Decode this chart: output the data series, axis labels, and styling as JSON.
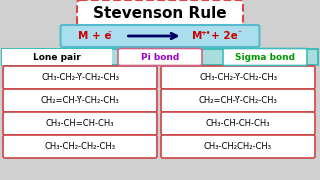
{
  "title": "Stevenson Rule",
  "title_fontsize": 11,
  "title_box_color": "#ffffff",
  "title_border_color": "#dd4444",
  "title_border_style": "dashed",
  "bg_color": "#d0d0d0",
  "fig_bg_color": "#888888",
  "equation_box_color": "#aaddee",
  "equation_border_color": "#55bbcc",
  "eq_left": "M + e",
  "eq_left_sup": "-",
  "eq_right": "M",
  "eq_right_sup": "+•",
  "eq_right2": " + 2e",
  "eq_right2_sup": "-",
  "eq_color": "#cc0000",
  "arrow_color": "#000066",
  "header_bg": "#aadddd",
  "header_border": "#44bbbb",
  "headers": [
    "Lone pair",
    "Pi bond",
    "Sigma bond"
  ],
  "header_lp_color": "#000000",
  "header_pi_color": "#9900cc",
  "header_pi_bg": "#ffffff",
  "header_pi_border": "#cc6688",
  "header_sigma_color": "#009900",
  "header_sigma_bg": "#ffffff",
  "header_sigma_border": "#44bbbb",
  "left_items": [
    "CH₃-CH₂-Ẏ-CH₂-CH₃",
    "CH₂=CH-Ẏ-CH₂-CH₃",
    "CH₃-CH=CH-CH₃",
    "CH₃-CH₂-CH₂-CH₃"
  ],
  "right_items": [
    "CH₃-CH₂-Ẏ-CH₂-CH₃",
    "CH₂=CH-Ẏ-CH₂-CH₃",
    "CH₃-CH˙-CH-CH₃",
    "CH₃-CH₂˙˙CH₂-CH₃"
  ],
  "left_items_display": [
    "CH₃-CH₂-Y-CH₂-CH₃",
    "CH₂=CH-Y-CH₂-CH₃",
    "CH₃-CH=CH-CH₃",
    "CH₃-CH₂-CH₂-CH₃"
  ],
  "right_items_display": [
    "CH₃-CH₂-Y-CH₂-CH₃",
    "CH₂=CH-Y-CH₂-CH₃",
    "CH₃-CH·-CH-CH₃",
    "CH₃-CH₂··CH₂-CH₃"
  ],
  "item_fontsize": 6,
  "row_box_border": "#cc4444",
  "row_box_bg": "#ffffff"
}
